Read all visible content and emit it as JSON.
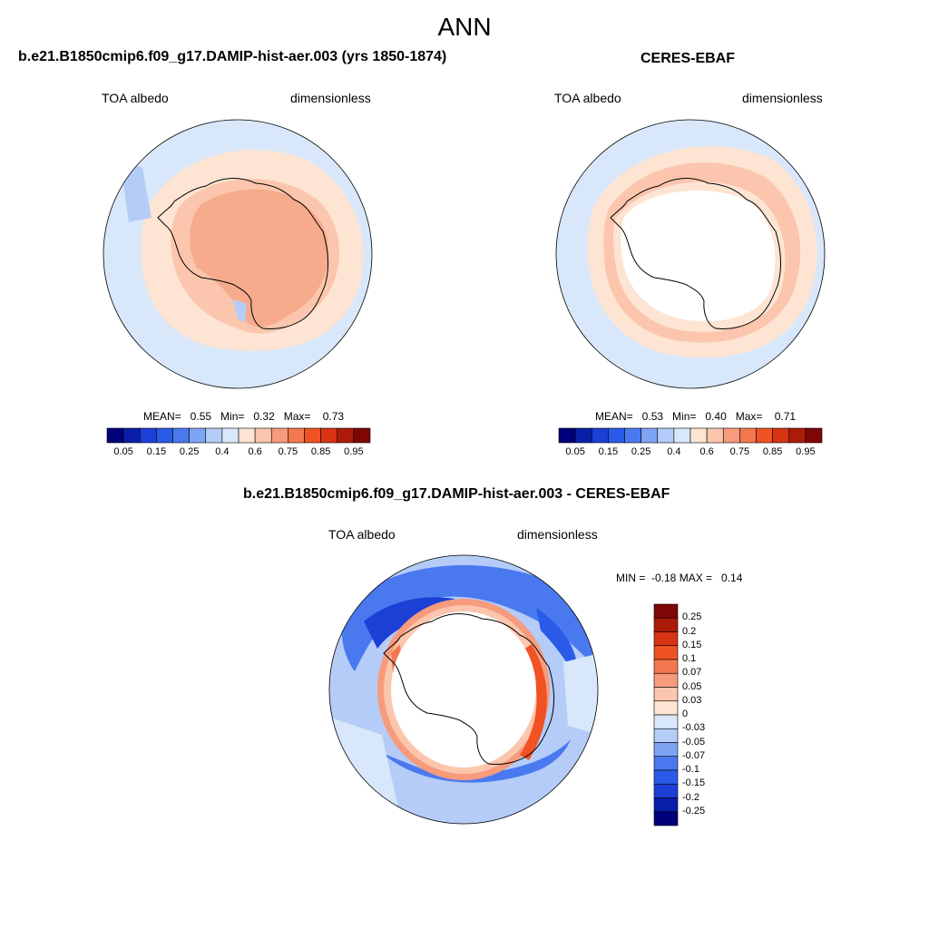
{
  "figure": {
    "title": "ANN"
  },
  "panels": [
    {
      "title": "b.e21.B1850cmip6.f09_g17.DAMIP-hist-aer.003 (yrs 1850-1874)",
      "left_label": "TOA albedo",
      "right_label": "dimensionless",
      "stats": "MEAN=   0.55   Min=   0.32   Max=    0.73"
    },
    {
      "title": "CERES-EBAF",
      "left_label": "TOA albedo",
      "right_label": "dimensionless",
      "stats": "MEAN=   0.53   Min=   0.40   Max=    0.71"
    },
    {
      "title": "b.e21.B1850cmip6.f09_g17.DAMIP-hist-aer.003 - CERES-EBAF",
      "left_label": "TOA albedo",
      "right_label": "dimensionless",
      "stats": "MIN =  -0.18 MAX =   0.14"
    }
  ],
  "colorbars": {
    "abs": {
      "colors": [
        "#00007a",
        "#0a1fa8",
        "#1c3fd6",
        "#2a5ae8",
        "#4a79ef",
        "#7ea4f4",
        "#b4ccf7",
        "#d8e8fa",
        "#fde4d3",
        "#fbc6ad",
        "#f69b7c",
        "#f3784f",
        "#f05223",
        "#d83313",
        "#ac1b0a",
        "#7e0705"
      ],
      "labels": [
        "0.05",
        "0.15",
        "0.25",
        "0.4",
        "0.6",
        "0.75",
        "0.85",
        "0.95"
      ]
    },
    "diff": {
      "colors": [
        "#7e0705",
        "#ac1b0a",
        "#d83313",
        "#f05223",
        "#f3784f",
        "#f69b7c",
        "#fbc6ad",
        "#fde4d3",
        "#d8e8fa",
        "#b4ccf7",
        "#7ea4f4",
        "#4a79ef",
        "#2a5ae8",
        "#1c3fd6",
        "#0a1fa8",
        "#00007a"
      ],
      "labels": [
        "0.25",
        "0.2",
        "0.15",
        "0.1",
        "0.07",
        "0.05",
        "0.03",
        "0",
        "-0.03",
        "-0.05",
        "-0.07",
        "-0.1",
        "-0.15",
        "-0.2",
        "-0.25"
      ]
    }
  }
}
